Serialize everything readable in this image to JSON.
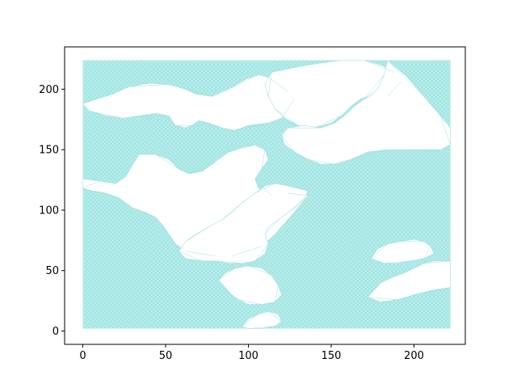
{
  "chart_data": {
    "type": "triplot",
    "title": "",
    "xlabel": "",
    "ylabel": "",
    "xlim": [
      -11,
      231
    ],
    "ylim": [
      -11,
      235
    ],
    "xticks": [
      0,
      50,
      100,
      150,
      200
    ],
    "yticks": [
      0,
      50,
      100,
      150,
      200
    ],
    "grid": false,
    "mesh_color": "#9fe3e0",
    "mesh_extent": {
      "x": [
        0,
        222
      ],
      "y": [
        2,
        224
      ]
    },
    "holes": [
      {
        "name": "upper-left",
        "points": [
          [
            0,
            188
          ],
          [
            8,
            192
          ],
          [
            18,
            196
          ],
          [
            28,
            202
          ],
          [
            40,
            205
          ],
          [
            52,
            204
          ],
          [
            62,
            200
          ],
          [
            68,
            196
          ],
          [
            78,
            194
          ],
          [
            88,
            200
          ],
          [
            98,
            208
          ],
          [
            106,
            212
          ],
          [
            112,
            210
          ],
          [
            118,
            204
          ],
          [
            124,
            198
          ],
          [
            128,
            192
          ],
          [
            126,
            182
          ],
          [
            120,
            176
          ],
          [
            112,
            172
          ],
          [
            100,
            170
          ],
          [
            92,
            166
          ],
          [
            84,
            168
          ],
          [
            76,
            172
          ],
          [
            70,
            174
          ],
          [
            66,
            170
          ],
          [
            62,
            168
          ],
          [
            56,
            170
          ],
          [
            52,
            178
          ],
          [
            44,
            180
          ],
          [
            34,
            178
          ],
          [
            24,
            176
          ],
          [
            14,
            178
          ],
          [
            4,
            182
          ]
        ]
      },
      {
        "name": "left-central",
        "points": [
          [
            0,
            126
          ],
          [
            10,
            124
          ],
          [
            20,
            122
          ],
          [
            26,
            128
          ],
          [
            30,
            138
          ],
          [
            34,
            146
          ],
          [
            44,
            146
          ],
          [
            52,
            142
          ],
          [
            58,
            134
          ],
          [
            64,
            130
          ],
          [
            72,
            132
          ],
          [
            80,
            140
          ],
          [
            88,
            148
          ],
          [
            96,
            152
          ],
          [
            104,
            154
          ],
          [
            110,
            150
          ],
          [
            112,
            142
          ],
          [
            108,
            134
          ],
          [
            104,
            126
          ],
          [
            106,
            118
          ],
          [
            114,
            112
          ],
          [
            124,
            114
          ],
          [
            132,
            118
          ],
          [
            136,
            112
          ],
          [
            130,
            102
          ],
          [
            124,
            92
          ],
          [
            116,
            80
          ],
          [
            108,
            70
          ],
          [
            100,
            64
          ],
          [
            90,
            62
          ],
          [
            80,
            62
          ],
          [
            70,
            64
          ],
          [
            62,
            66
          ],
          [
            56,
            72
          ],
          [
            52,
            80
          ],
          [
            48,
            88
          ],
          [
            44,
            94
          ],
          [
            38,
            98
          ],
          [
            30,
            102
          ],
          [
            22,
            110
          ],
          [
            14,
            114
          ],
          [
            6,
            116
          ],
          [
            0,
            118
          ]
        ]
      },
      {
        "name": "upper-center",
        "points": [
          [
            114,
            214
          ],
          [
            120,
            216
          ],
          [
            128,
            218
          ],
          [
            136,
            220
          ],
          [
            144,
            222
          ],
          [
            156,
            224
          ],
          [
            170,
            224
          ],
          [
            180,
            220
          ],
          [
            188,
            214
          ],
          [
            192,
            206
          ],
          [
            190,
            198
          ],
          [
            184,
            194
          ],
          [
            176,
            196
          ],
          [
            168,
            192
          ],
          [
            162,
            186
          ],
          [
            156,
            178
          ],
          [
            150,
            172
          ],
          [
            140,
            168
          ],
          [
            130,
            170
          ],
          [
            122,
            176
          ],
          [
            116,
            184
          ],
          [
            112,
            194
          ],
          [
            110,
            204
          ]
        ]
      },
      {
        "name": "right-wedge",
        "points": [
          [
            184,
            224
          ],
          [
            196,
            210
          ],
          [
            206,
            194
          ],
          [
            216,
            178
          ],
          [
            222,
            168
          ],
          [
            222,
            154
          ],
          [
            216,
            150
          ],
          [
            204,
            150
          ],
          [
            194,
            150
          ],
          [
            184,
            150
          ],
          [
            172,
            148
          ],
          [
            162,
            142
          ],
          [
            152,
            138
          ],
          [
            144,
            138
          ],
          [
            136,
            142
          ],
          [
            128,
            148
          ],
          [
            122,
            154
          ],
          [
            120,
            162
          ],
          [
            124,
            168
          ],
          [
            134,
            170
          ],
          [
            144,
            168
          ],
          [
            152,
            172
          ],
          [
            158,
            178
          ],
          [
            164,
            186
          ],
          [
            170,
            192
          ],
          [
            178,
            200
          ],
          [
            182,
            212
          ]
        ]
      },
      {
        "name": "center-blob",
        "points": [
          [
            104,
            114
          ],
          [
            110,
            120
          ],
          [
            116,
            122
          ],
          [
            124,
            120
          ],
          [
            130,
            118
          ],
          [
            136,
            116
          ],
          [
            134,
            110
          ],
          [
            130,
            104
          ],
          [
            124,
            98
          ],
          [
            118,
            92
          ],
          [
            112,
            86
          ],
          [
            110,
            80
          ],
          [
            112,
            72
          ],
          [
            110,
            64
          ],
          [
            104,
            58
          ],
          [
            96,
            56
          ],
          [
            88,
            56
          ],
          [
            80,
            58
          ],
          [
            72,
            58
          ],
          [
            62,
            60
          ],
          [
            58,
            66
          ],
          [
            62,
            74
          ],
          [
            68,
            80
          ],
          [
            76,
            86
          ],
          [
            84,
            92
          ],
          [
            90,
            98
          ],
          [
            96,
            106
          ]
        ]
      },
      {
        "name": "right-mid",
        "points": [
          [
            172,
            28
          ],
          [
            176,
            34
          ],
          [
            180,
            40
          ],
          [
            186,
            44
          ],
          [
            194,
            48
          ],
          [
            200,
            52
          ],
          [
            206,
            56
          ],
          [
            212,
            58
          ],
          [
            222,
            58
          ],
          [
            222,
            36
          ],
          [
            212,
            34
          ],
          [
            200,
            30
          ],
          [
            190,
            26
          ],
          [
            180,
            24
          ]
        ]
      },
      {
        "name": "right-upper-mid",
        "points": [
          [
            174,
            60
          ],
          [
            178,
            68
          ],
          [
            184,
            72
          ],
          [
            192,
            74
          ],
          [
            200,
            76
          ],
          [
            206,
            74
          ],
          [
            210,
            70
          ],
          [
            212,
            64
          ],
          [
            206,
            60
          ],
          [
            198,
            58
          ],
          [
            190,
            56
          ],
          [
            182,
            56
          ]
        ]
      },
      {
        "name": "lower-center",
        "points": [
          [
            82,
            42
          ],
          [
            86,
            48
          ],
          [
            92,
            52
          ],
          [
            100,
            54
          ],
          [
            108,
            52
          ],
          [
            114,
            46
          ],
          [
            118,
            38
          ],
          [
            120,
            30
          ],
          [
            116,
            24
          ],
          [
            108,
            22
          ],
          [
            100,
            22
          ],
          [
            94,
            26
          ],
          [
            90,
            30
          ],
          [
            86,
            36
          ]
        ]
      },
      {
        "name": "lower-small",
        "points": [
          [
            96,
            4
          ],
          [
            100,
            10
          ],
          [
            106,
            14
          ],
          [
            112,
            16
          ],
          [
            118,
            14
          ],
          [
            120,
            8
          ],
          [
            116,
            4
          ],
          [
            108,
            2
          ],
          [
            100,
            2
          ]
        ]
      }
    ]
  }
}
